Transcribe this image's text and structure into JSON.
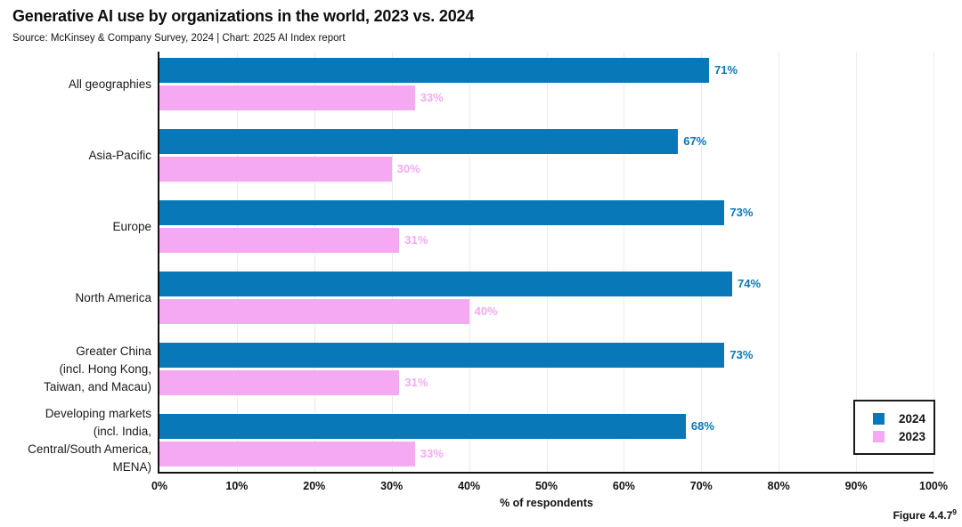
{
  "header": {
    "title": "Generative AI use by organizations in the world, 2023 vs. 2024",
    "subtitle": "Source: McKinsey & Company Survey, 2024 | Chart: 2025 AI Index report"
  },
  "footer": {
    "figure_label": "Figure 4.4.7",
    "figure_superscript": "9"
  },
  "colors": {
    "series_2024": "#0878b8",
    "series_2023": "#f5a9f2",
    "grid": "#ebebeb",
    "axis": "#111111"
  },
  "legend": {
    "items": [
      {
        "label": "2024",
        "color": "#0878b8"
      },
      {
        "label": "2023",
        "color": "#f5a9f2"
      }
    ]
  },
  "chart_data": {
    "type": "bar",
    "orientation": "horizontal",
    "title": "Generative AI use by organizations in the world, 2023 vs. 2024",
    "xlabel": "% of respondents",
    "xlim": [
      0,
      100
    ],
    "xtick_labels": [
      "0%",
      "10%",
      "20%",
      "30%",
      "40%",
      "50%",
      "60%",
      "70%",
      "80%",
      "90%",
      "100%"
    ],
    "grid": "vertical-light",
    "legend_position": "bottom-right",
    "categories": [
      "All geographies",
      "Asia-Pacific",
      "Europe",
      "North America",
      "Greater China\n(incl. Hong Kong,\nTaiwan, and Macau)",
      "Developing markets\n(incl. India,\nCentral/South America,\nMENA)"
    ],
    "series": [
      {
        "name": "2024",
        "color": "#0878b8",
        "values": [
          71,
          67,
          73,
          74,
          73,
          68
        ],
        "value_labels": [
          "71%",
          "67%",
          "73%",
          "74%",
          "73%",
          "68%"
        ]
      },
      {
        "name": "2023",
        "color": "#f5a9f2",
        "values": [
          33,
          30,
          31,
          40,
          31,
          33
        ],
        "value_labels": [
          "33%",
          "30%",
          "31%",
          "40%",
          "31%",
          "33%"
        ]
      }
    ]
  }
}
